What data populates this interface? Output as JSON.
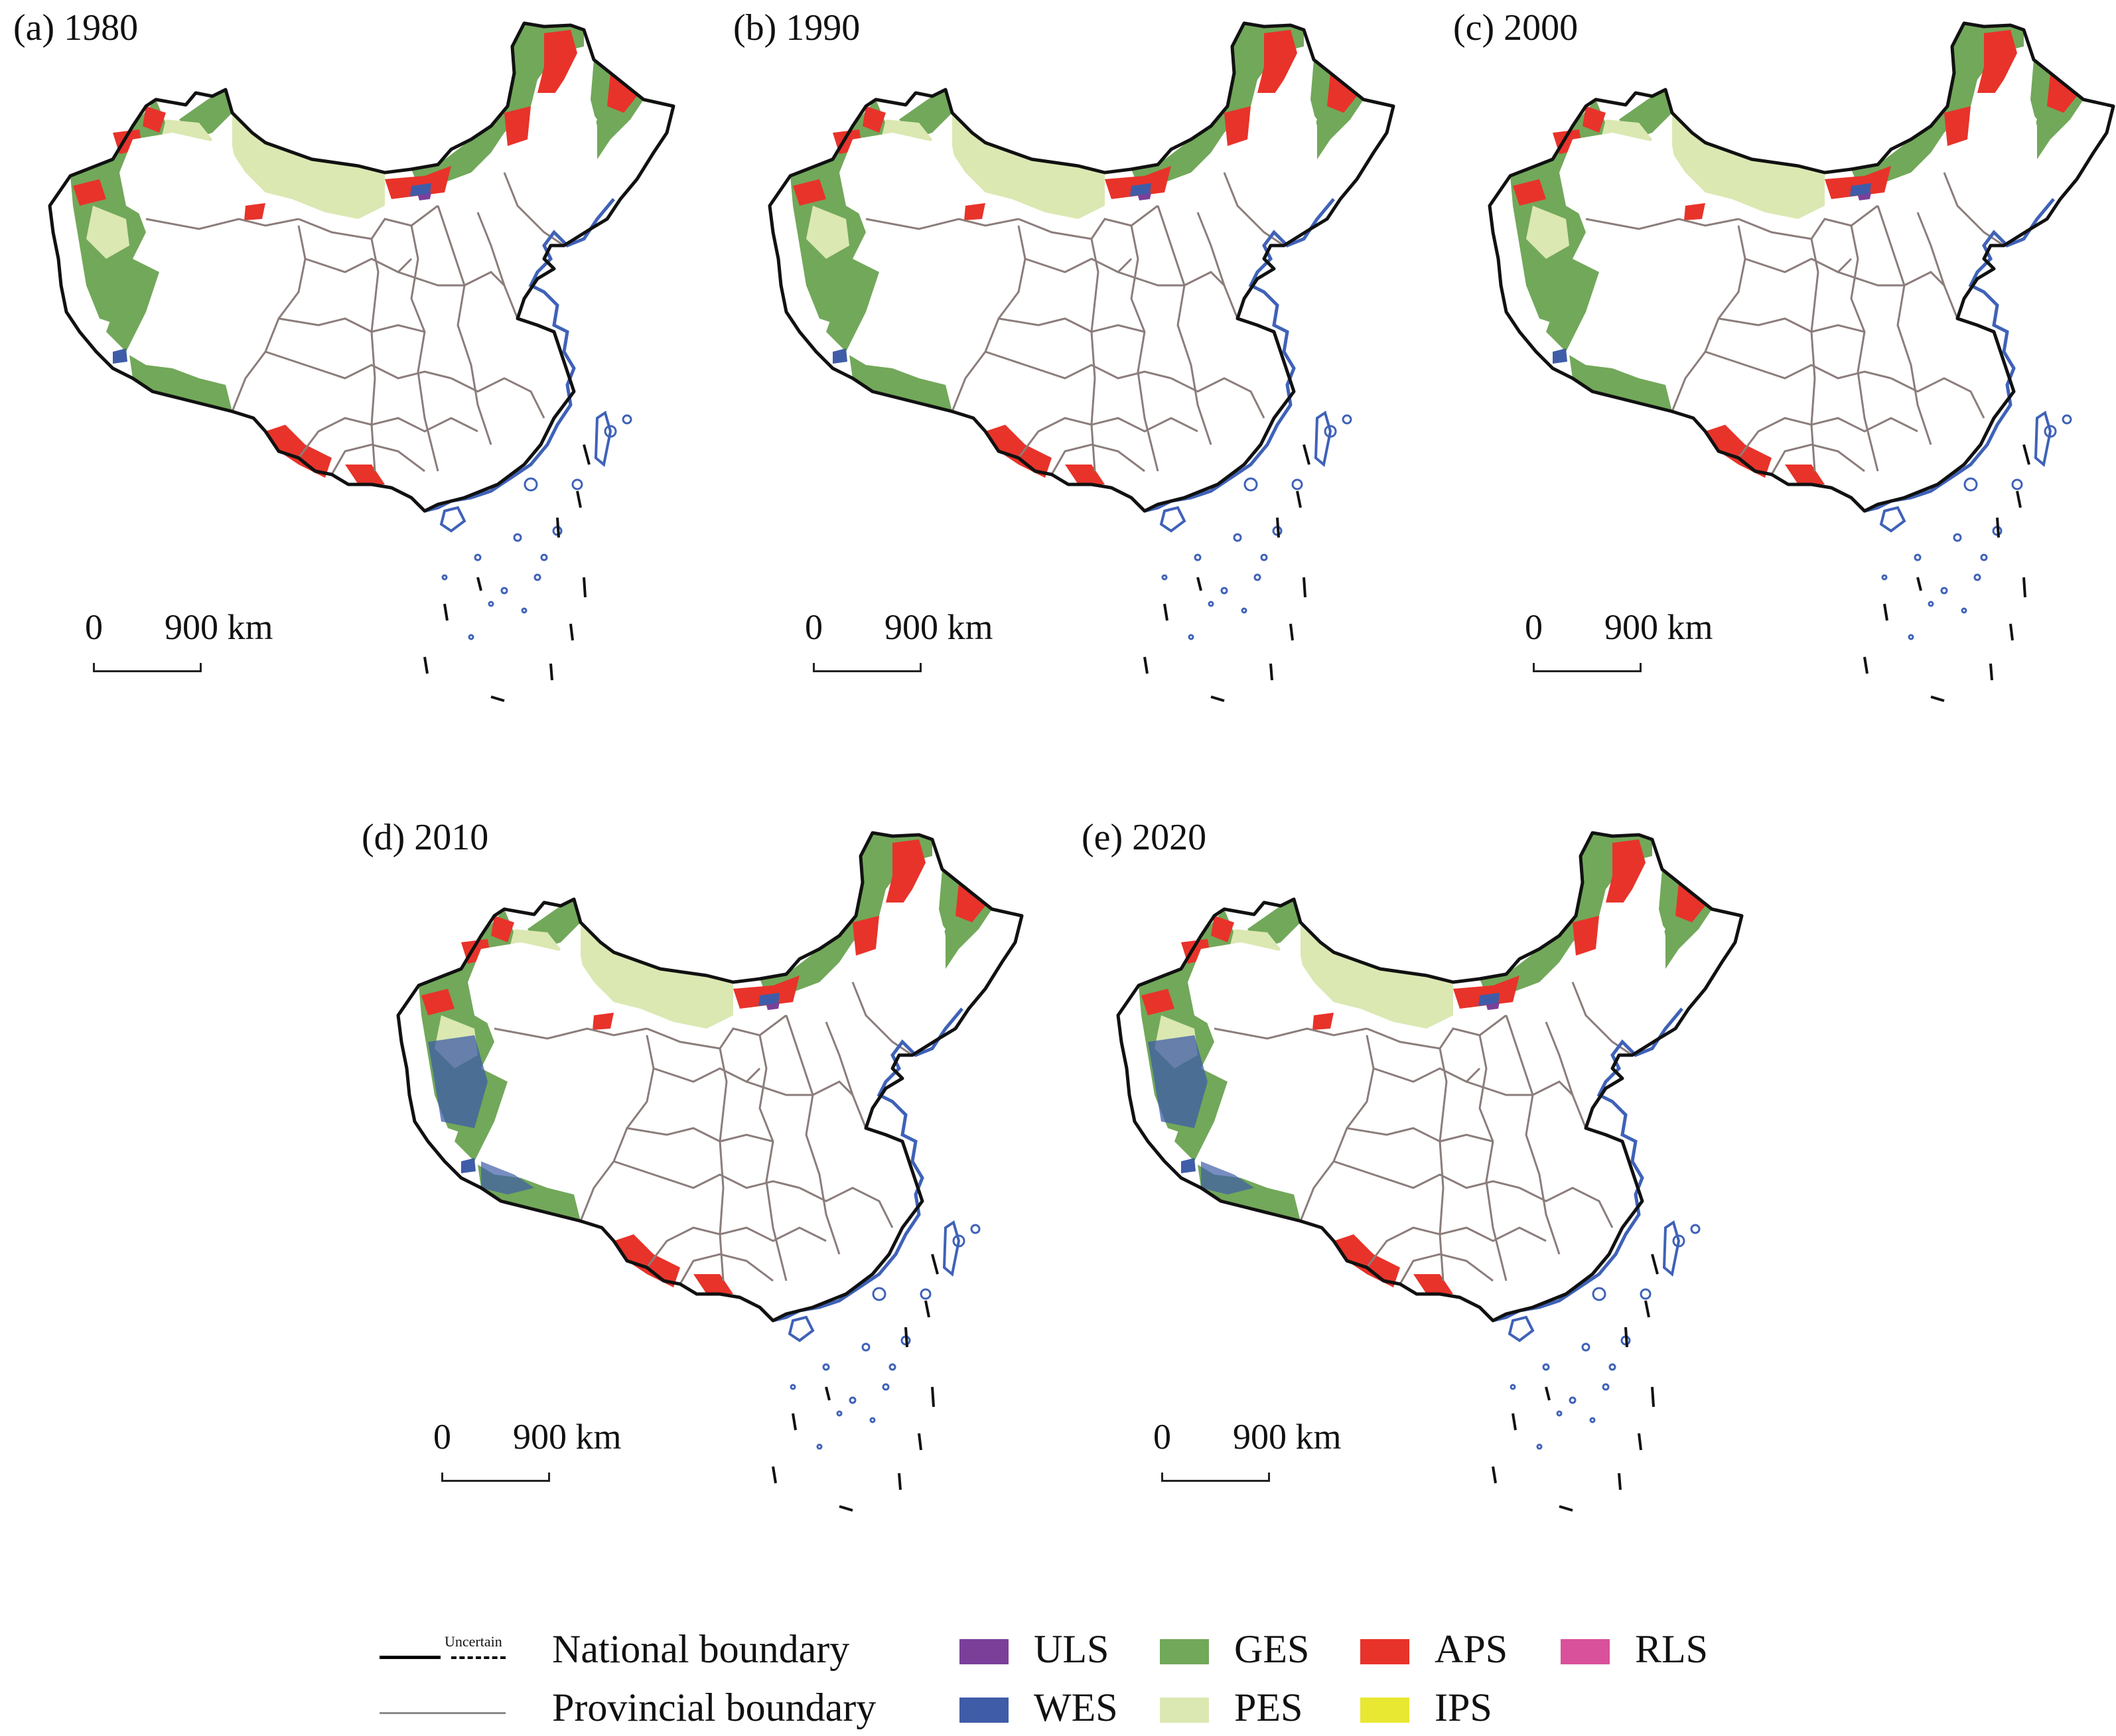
{
  "panels": [
    {
      "title": "(a) 1980"
    },
    {
      "title": "(b) 1990"
    },
    {
      "title": "(c) 2000"
    },
    {
      "title": "(d) 2010"
    },
    {
      "title": "(e) 2020"
    }
  ],
  "scalebar": {
    "zero": "0",
    "distance": "900 km"
  },
  "legend": {
    "uncertain": "Uncertain",
    "national_boundary": "National boundary",
    "provincial_boundary": "Provincial boundary",
    "categories": [
      {
        "code": "ULS",
        "color": "#7b3f9a"
      },
      {
        "code": "GES",
        "color": "#72a85a"
      },
      {
        "code": "APS",
        "color": "#e8332a"
      },
      {
        "code": "RLS",
        "color": "#d9519b"
      },
      {
        "code": "WES",
        "color": "#3f5ca8"
      },
      {
        "code": "PES",
        "color": "#dbe8b2"
      },
      {
        "code": "IPS",
        "color": "#e8e832"
      }
    ]
  }
}
